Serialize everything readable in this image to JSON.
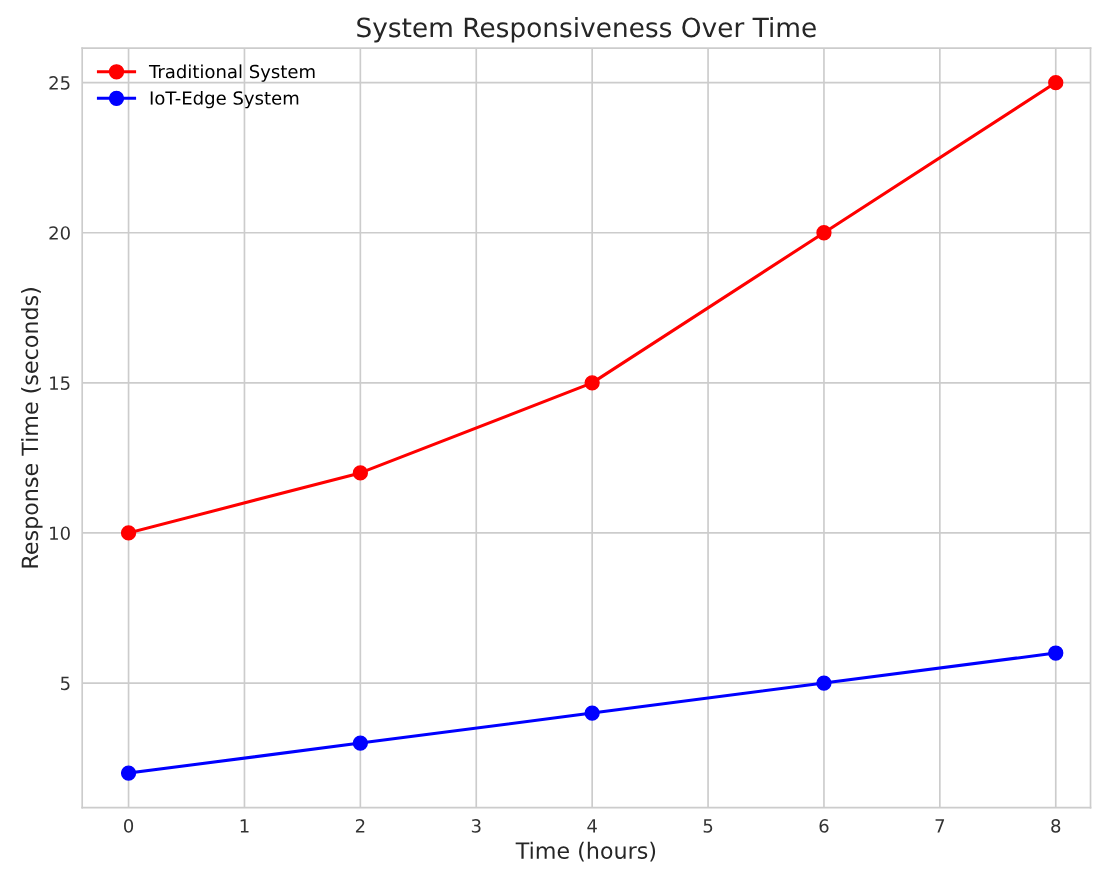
{
  "chart_data": {
    "type": "line",
    "title": "System Responsiveness Over Time",
    "xlabel": "Time (hours)",
    "ylabel": "Response Time (seconds)",
    "x": [
      0,
      2,
      4,
      6,
      8
    ],
    "series": [
      {
        "name": "Traditional System",
        "color": "#ff0000",
        "values": [
          10,
          12,
          15,
          20,
          25
        ]
      },
      {
        "name": "IoT-Edge System",
        "color": "#0000ff",
        "values": [
          2,
          3,
          4,
          5,
          6
        ]
      }
    ],
    "xlim": [
      -0.4,
      8.3
    ],
    "ylim": [
      0.85,
      26.15
    ],
    "xticks": [
      0,
      1,
      2,
      3,
      4,
      5,
      6,
      7,
      8
    ],
    "yticks": [
      5,
      10,
      15,
      20,
      25
    ],
    "grid": true,
    "legend": "top left",
    "marker": "circle",
    "line_style": "solid"
  }
}
